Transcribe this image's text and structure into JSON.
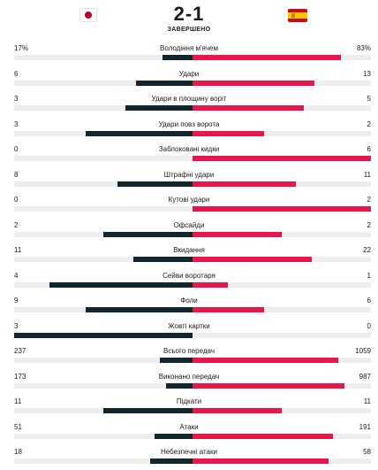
{
  "match": {
    "score": "2-1",
    "status": "ЗАВЕРШЕНО",
    "home_flag": "japan-flag",
    "away_flag": "spain-flag"
  },
  "colors": {
    "home_bar": "#13262f",
    "away_bar": "#e8164a",
    "japan_red": "#bc002d",
    "spain_red": "#c60b1e",
    "spain_yellow": "#ffc400"
  },
  "stats": [
    {
      "label": "Володіння м'ячем",
      "home": "17%",
      "away": "83%",
      "home_pct": 0.17,
      "away_pct": 0.83
    },
    {
      "label": "Удари",
      "home": "6",
      "away": "13",
      "home_pct": 0.316,
      "away_pct": 0.684
    },
    {
      "label": "Удари в площину воріт",
      "home": "3",
      "away": "5",
      "home_pct": 0.375,
      "away_pct": 0.625
    },
    {
      "label": "Удари повз ворота",
      "home": "3",
      "away": "2",
      "home_pct": 0.6,
      "away_pct": 0.4
    },
    {
      "label": "Заблоковані кидки",
      "home": "0",
      "away": "6",
      "home_pct": 0.0,
      "away_pct": 1.0
    },
    {
      "label": "Штрафні удари",
      "home": "8",
      "away": "11",
      "home_pct": 0.421,
      "away_pct": 0.579
    },
    {
      "label": "Кутові удари",
      "home": "0",
      "away": "2",
      "home_pct": 0.0,
      "away_pct": 1.0
    },
    {
      "label": "Офсайди",
      "home": "2",
      "away": "2",
      "home_pct": 0.5,
      "away_pct": 0.5
    },
    {
      "label": "Вкидання",
      "home": "11",
      "away": "22",
      "home_pct": 0.333,
      "away_pct": 0.667
    },
    {
      "label": "Сейви воротаря",
      "home": "4",
      "away": "1",
      "home_pct": 0.8,
      "away_pct": 0.2
    },
    {
      "label": "Фоли",
      "home": "9",
      "away": "6",
      "home_pct": 0.6,
      "away_pct": 0.4
    },
    {
      "label": "Жовті картки",
      "home": "3",
      "away": "0",
      "home_pct": 1.0,
      "away_pct": 0.0
    },
    {
      "label": "Всього передач",
      "home": "237",
      "away": "1059",
      "home_pct": 0.183,
      "away_pct": 0.817
    },
    {
      "label": "Виконано передач",
      "home": "173",
      "away": "987",
      "home_pct": 0.149,
      "away_pct": 0.851
    },
    {
      "label": "Підкати",
      "home": "11",
      "away": "11",
      "home_pct": 0.5,
      "away_pct": 0.5
    },
    {
      "label": "Атаки",
      "home": "51",
      "away": "191",
      "home_pct": 0.211,
      "away_pct": 0.789
    },
    {
      "label": "Небезпечні атаки",
      "home": "18",
      "away": "58",
      "home_pct": 0.237,
      "away_pct": 0.763
    }
  ]
}
